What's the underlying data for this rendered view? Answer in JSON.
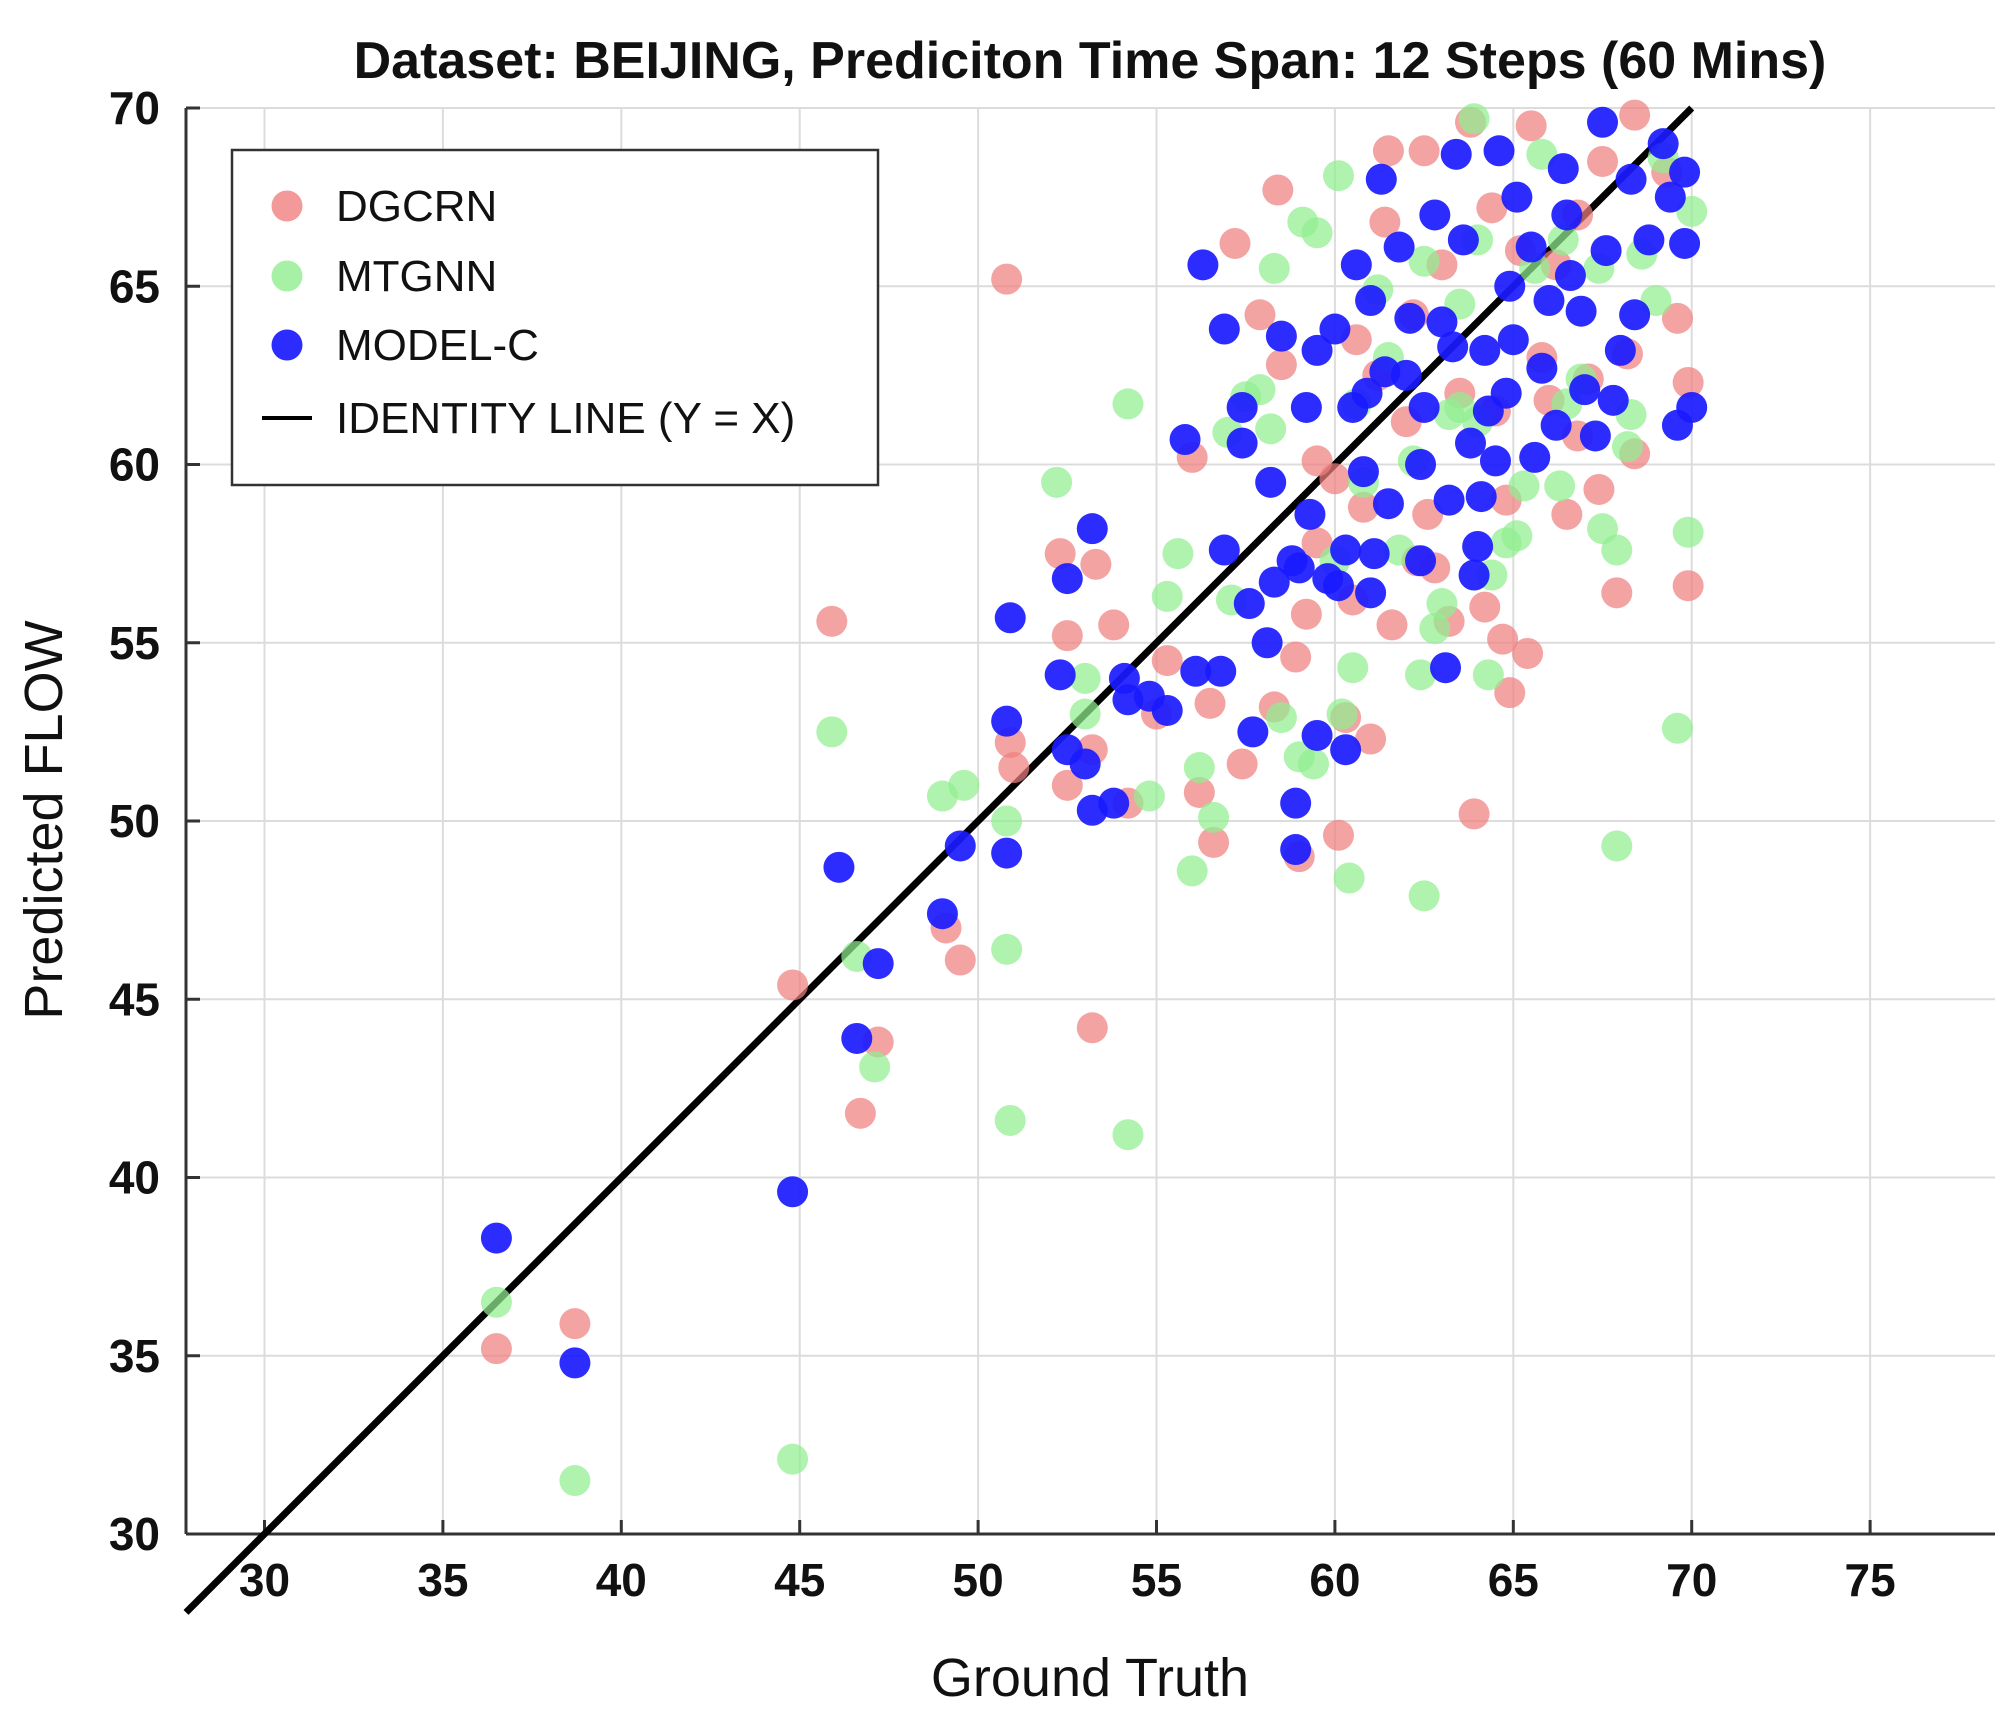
{
  "chart_data": {
    "type": "scatter",
    "title": "Dataset: BEIJING, Prediciton Time Span: 12 Steps (60 Mins)",
    "xlabel": "Ground Truth",
    "ylabel": "Predicted FLOW",
    "xlim": [
      27.8,
      78.5
    ],
    "ylim": [
      30,
      70
    ],
    "xticks": [
      30,
      35,
      40,
      45,
      50,
      55,
      60,
      65,
      70,
      75
    ],
    "yticks": [
      30,
      35,
      40,
      45,
      50,
      55,
      60,
      65,
      70
    ],
    "grid": true,
    "legend_position": "top-left",
    "identity_line": {
      "name": "IDENTITY LINE (Y = X)",
      "color": "#000000",
      "from": [
        27.8,
        27.8
      ],
      "to": [
        70,
        70
      ]
    },
    "series": [
      {
        "name": "DGCRN",
        "color": "#f08080",
        "points": [
          [
            36.5,
            35.2
          ],
          [
            38.7,
            35.9
          ],
          [
            44.8,
            45.4
          ],
          [
            45.9,
            55.6
          ],
          [
            46.7,
            41.8
          ],
          [
            47.2,
            43.8
          ],
          [
            49.1,
            47.0
          ],
          [
            49.5,
            46.1
          ],
          [
            50.9,
            52.2
          ],
          [
            51.0,
            51.5
          ],
          [
            50.8,
            65.2
          ],
          [
            52.3,
            57.5
          ],
          [
            52.5,
            55.2
          ],
          [
            52.5,
            51.0
          ],
          [
            53.2,
            52.0
          ],
          [
            53.3,
            57.2
          ],
          [
            53.8,
            55.5
          ],
          [
            53.2,
            44.2
          ],
          [
            54.2,
            50.5
          ],
          [
            55.0,
            53.0
          ],
          [
            55.3,
            54.5
          ],
          [
            56.0,
            60.2
          ],
          [
            56.2,
            50.8
          ],
          [
            56.5,
            53.3
          ],
          [
            56.6,
            49.4
          ],
          [
            57.2,
            66.2
          ],
          [
            57.4,
            51.6
          ],
          [
            57.9,
            64.2
          ],
          [
            58.4,
            67.7
          ],
          [
            58.3,
            53.2
          ],
          [
            58.5,
            62.8
          ],
          [
            58.9,
            54.6
          ],
          [
            59.0,
            49.0
          ],
          [
            59.2,
            55.8
          ],
          [
            59.5,
            60.1
          ],
          [
            60.0,
            59.6
          ],
          [
            60.1,
            49.6
          ],
          [
            60.3,
            52.9
          ],
          [
            60.5,
            56.2
          ],
          [
            60.6,
            63.5
          ],
          [
            60.8,
            58.8
          ],
          [
            61.0,
            52.3
          ],
          [
            61.2,
            62.5
          ],
          [
            61.4,
            66.8
          ],
          [
            61.5,
            68.8
          ],
          [
            61.6,
            55.5
          ],
          [
            62.0,
            61.2
          ],
          [
            62.2,
            64.2
          ],
          [
            62.5,
            68.8
          ],
          [
            62.6,
            58.6
          ],
          [
            62.8,
            57.1
          ],
          [
            63.0,
            65.6
          ],
          [
            63.2,
            55.6
          ],
          [
            63.5,
            62.0
          ],
          [
            63.8,
            69.6
          ],
          [
            63.9,
            50.2
          ],
          [
            64.2,
            56.0
          ],
          [
            64.4,
            67.2
          ],
          [
            64.5,
            61.5
          ],
          [
            64.7,
            55.1
          ],
          [
            64.9,
            53.6
          ],
          [
            65.2,
            66.0
          ],
          [
            65.5,
            69.5
          ],
          [
            65.4,
            54.7
          ],
          [
            65.8,
            63.0
          ],
          [
            66.0,
            61.8
          ],
          [
            66.2,
            65.6
          ],
          [
            66.5,
            58.6
          ],
          [
            66.8,
            67.0
          ],
          [
            67.1,
            62.4
          ],
          [
            67.4,
            59.3
          ],
          [
            67.5,
            68.5
          ],
          [
            67.9,
            56.4
          ],
          [
            68.2,
            63.1
          ],
          [
            68.4,
            69.8
          ],
          [
            68.4,
            60.3
          ],
          [
            69.3,
            68.2
          ],
          [
            69.6,
            64.1
          ],
          [
            69.9,
            62.3
          ],
          [
            69.9,
            56.6
          ],
          [
            59.5,
            57.8
          ],
          [
            62.3,
            57.3
          ],
          [
            64.8,
            59.0
          ],
          [
            66.8,
            60.8
          ]
        ]
      },
      {
        "name": "MTGNN",
        "color": "#90ee90",
        "points": [
          [
            36.5,
            36.5
          ],
          [
            38.7,
            31.5
          ],
          [
            44.8,
            32.1
          ],
          [
            45.9,
            52.5
          ],
          [
            46.6,
            46.2
          ],
          [
            47.1,
            43.1
          ],
          [
            49.0,
            50.7
          ],
          [
            49.6,
            51.0
          ],
          [
            50.8,
            50.0
          ],
          [
            50.8,
            46.4
          ],
          [
            50.9,
            41.6
          ],
          [
            52.2,
            59.5
          ],
          [
            53.0,
            54.0
          ],
          [
            53.0,
            53.0
          ],
          [
            54.2,
            41.2
          ],
          [
            54.2,
            61.7
          ],
          [
            54.8,
            50.7
          ],
          [
            55.3,
            56.3
          ],
          [
            55.6,
            57.5
          ],
          [
            56.0,
            48.6
          ],
          [
            56.2,
            51.5
          ],
          [
            56.6,
            50.1
          ],
          [
            57.1,
            56.2
          ],
          [
            57.5,
            61.9
          ],
          [
            57.9,
            62.1
          ],
          [
            58.2,
            61.0
          ],
          [
            58.3,
            65.5
          ],
          [
            58.5,
            52.9
          ],
          [
            59.0,
            51.8
          ],
          [
            59.1,
            66.8
          ],
          [
            59.4,
            51.6
          ],
          [
            59.5,
            66.5
          ],
          [
            60.0,
            57.3
          ],
          [
            60.1,
            68.1
          ],
          [
            60.2,
            53.0
          ],
          [
            60.4,
            48.4
          ],
          [
            60.5,
            54.3
          ],
          [
            60.6,
            61.7
          ],
          [
            60.8,
            59.5
          ],
          [
            61.2,
            64.9
          ],
          [
            61.5,
            63.0
          ],
          [
            61.8,
            57.6
          ],
          [
            62.2,
            60.1
          ],
          [
            62.4,
            54.1
          ],
          [
            62.5,
            65.7
          ],
          [
            62.5,
            47.9
          ],
          [
            62.8,
            55.4
          ],
          [
            63.0,
            56.1
          ],
          [
            63.2,
            61.4
          ],
          [
            63.5,
            61.6
          ],
          [
            63.5,
            64.5
          ],
          [
            63.9,
            69.7
          ],
          [
            64.0,
            66.3
          ],
          [
            64.3,
            54.1
          ],
          [
            64.4,
            56.9
          ],
          [
            64.8,
            57.8
          ],
          [
            65.1,
            58.0
          ],
          [
            65.3,
            59.4
          ],
          [
            65.6,
            65.5
          ],
          [
            65.8,
            68.7
          ],
          [
            66.3,
            59.4
          ],
          [
            66.4,
            66.3
          ],
          [
            66.5,
            61.7
          ],
          [
            66.9,
            62.4
          ],
          [
            67.4,
            65.5
          ],
          [
            67.5,
            58.2
          ],
          [
            67.9,
            57.6
          ],
          [
            67.9,
            49.3
          ],
          [
            68.2,
            60.5
          ],
          [
            68.3,
            61.4
          ],
          [
            68.6,
            65.9
          ],
          [
            69.0,
            64.6
          ],
          [
            69.2,
            68.6
          ],
          [
            69.6,
            52.6
          ],
          [
            69.9,
            58.1
          ],
          [
            70.0,
            67.1
          ],
          [
            57.0,
            60.9
          ],
          [
            64.0,
            61.2
          ]
        ]
      },
      {
        "name": "MODEL-C",
        "color": "#1a1aff",
        "points": [
          [
            36.5,
            38.3
          ],
          [
            38.7,
            34.8
          ],
          [
            44.8,
            39.6
          ],
          [
            46.1,
            48.7
          ],
          [
            46.6,
            43.9
          ],
          [
            47.2,
            46.0
          ],
          [
            49.0,
            47.4
          ],
          [
            49.5,
            49.3
          ],
          [
            50.8,
            49.1
          ],
          [
            50.8,
            52.8
          ],
          [
            50.9,
            55.7
          ],
          [
            52.3,
            54.1
          ],
          [
            52.5,
            56.8
          ],
          [
            52.5,
            52.0
          ],
          [
            53.0,
            51.6
          ],
          [
            53.2,
            58.2
          ],
          [
            53.2,
            50.3
          ],
          [
            53.8,
            50.5
          ],
          [
            54.1,
            54.0
          ],
          [
            54.2,
            53.4
          ],
          [
            54.8,
            53.5
          ],
          [
            55.3,
            53.1
          ],
          [
            55.8,
            60.7
          ],
          [
            56.1,
            54.2
          ],
          [
            56.3,
            65.6
          ],
          [
            56.8,
            54.2
          ],
          [
            56.9,
            63.8
          ],
          [
            56.9,
            57.6
          ],
          [
            57.4,
            60.6
          ],
          [
            57.6,
            56.1
          ],
          [
            57.4,
            61.6
          ],
          [
            57.7,
            52.5
          ],
          [
            58.1,
            55.0
          ],
          [
            58.2,
            59.5
          ],
          [
            58.3,
            56.7
          ],
          [
            58.5,
            63.6
          ],
          [
            58.8,
            57.3
          ],
          [
            58.9,
            50.5
          ],
          [
            58.9,
            49.2
          ],
          [
            59.0,
            57.1
          ],
          [
            59.2,
            61.6
          ],
          [
            59.3,
            58.6
          ],
          [
            59.5,
            63.2
          ],
          [
            59.5,
            52.4
          ],
          [
            59.8,
            56.8
          ],
          [
            60.0,
            63.8
          ],
          [
            60.1,
            56.6
          ],
          [
            60.3,
            52.0
          ],
          [
            60.3,
            57.6
          ],
          [
            60.5,
            61.6
          ],
          [
            60.6,
            65.6
          ],
          [
            60.8,
            59.8
          ],
          [
            60.9,
            62.0
          ],
          [
            61.0,
            64.6
          ],
          [
            61.0,
            56.4
          ],
          [
            61.1,
            57.5
          ],
          [
            61.3,
            68.0
          ],
          [
            61.4,
            62.6
          ],
          [
            61.5,
            58.9
          ],
          [
            61.8,
            66.1
          ],
          [
            62.1,
            64.1
          ],
          [
            62.4,
            60.0
          ],
          [
            62.4,
            57.3
          ],
          [
            62.5,
            61.6
          ],
          [
            62.8,
            67.0
          ],
          [
            63.1,
            54.3
          ],
          [
            63.2,
            59.0
          ],
          [
            63.3,
            63.3
          ],
          [
            63.4,
            68.7
          ],
          [
            63.6,
            66.3
          ],
          [
            63.8,
            60.6
          ],
          [
            63.9,
            56.9
          ],
          [
            64.0,
            57.7
          ],
          [
            64.1,
            59.1
          ],
          [
            64.2,
            63.2
          ],
          [
            64.5,
            60.1
          ],
          [
            64.6,
            68.8
          ],
          [
            64.8,
            62.0
          ],
          [
            64.9,
            65.0
          ],
          [
            65.1,
            67.5
          ],
          [
            65.5,
            66.1
          ],
          [
            65.6,
            60.2
          ],
          [
            65.8,
            62.7
          ],
          [
            66.0,
            64.6
          ],
          [
            66.2,
            61.1
          ],
          [
            66.4,
            68.3
          ],
          [
            66.6,
            65.3
          ],
          [
            66.9,
            64.3
          ],
          [
            67.0,
            62.1
          ],
          [
            67.3,
            60.8
          ],
          [
            67.5,
            69.6
          ],
          [
            67.6,
            66.0
          ],
          [
            67.8,
            61.8
          ],
          [
            68.0,
            63.2
          ],
          [
            68.3,
            68.0
          ],
          [
            68.4,
            64.2
          ],
          [
            68.8,
            66.3
          ],
          [
            69.2,
            69.0
          ],
          [
            69.4,
            67.5
          ],
          [
            69.6,
            61.1
          ],
          [
            69.8,
            68.2
          ],
          [
            69.8,
            66.2
          ],
          [
            70.0,
            61.6
          ],
          [
            62.0,
            62.5
          ],
          [
            63.0,
            64.0
          ],
          [
            65.0,
            63.5
          ],
          [
            66.5,
            67.0
          ],
          [
            64.3,
            61.5
          ]
        ]
      }
    ]
  }
}
